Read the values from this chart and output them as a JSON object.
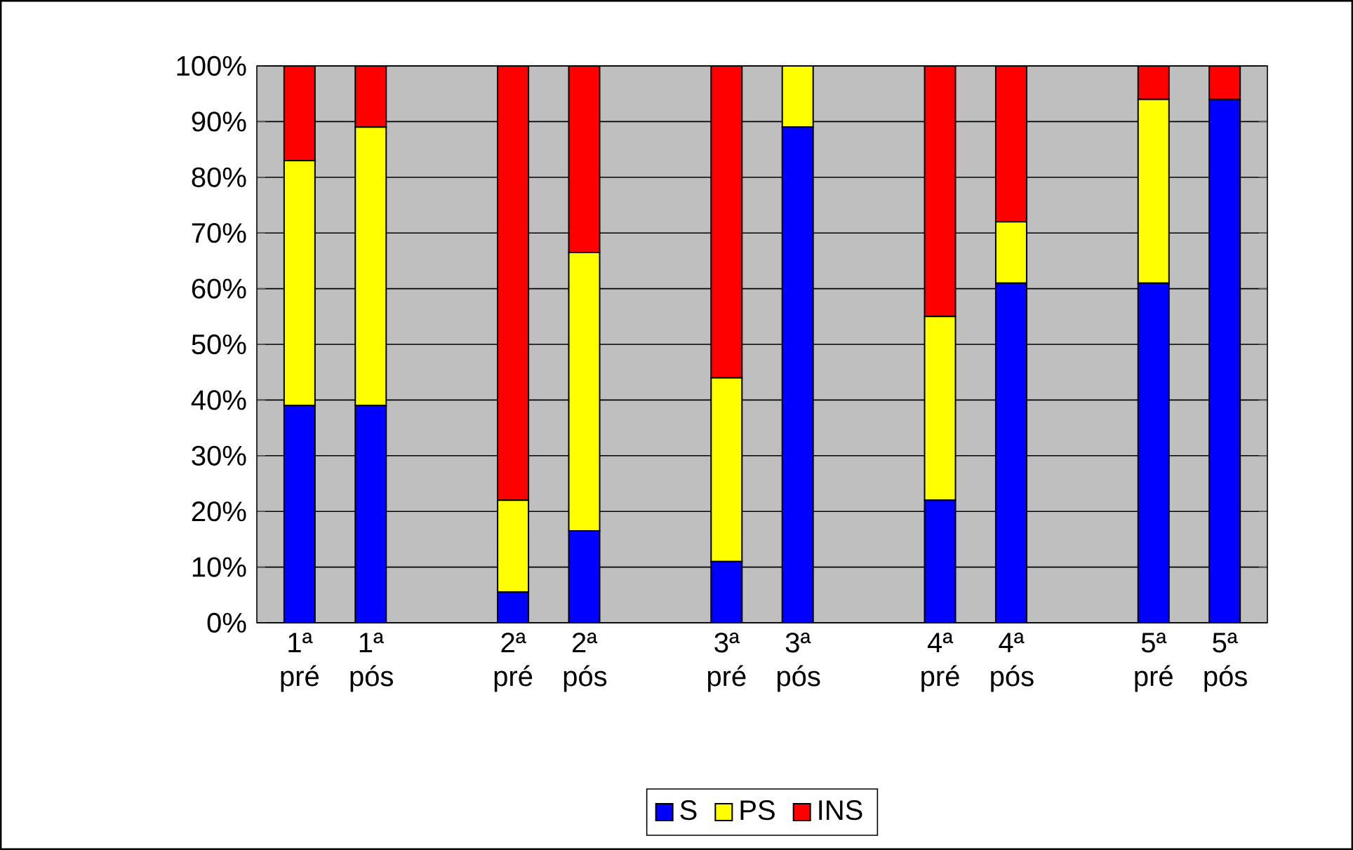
{
  "chart_data": {
    "type": "bar",
    "stacked": true,
    "categories": [
      "1ª pré",
      "1ª pós",
      null,
      "2ª pré",
      "2ª pós",
      null,
      "3ª pré",
      "3ª pós",
      null,
      "4ª pré",
      "4ª pós",
      null,
      "5ª pré",
      "5ª pós"
    ],
    "series": [
      {
        "name": "S",
        "color": "#0000ff",
        "values": [
          39,
          39,
          null,
          5.5,
          16.5,
          null,
          11,
          89,
          null,
          22,
          61,
          null,
          61,
          94
        ]
      },
      {
        "name": "PS",
        "color": "#ffff00",
        "values": [
          44,
          50,
          null,
          16.5,
          50,
          null,
          33,
          11,
          null,
          33,
          11,
          null,
          33,
          0
        ]
      },
      {
        "name": "INS",
        "color": "#ff0000",
        "values": [
          17,
          11,
          null,
          78,
          33.5,
          null,
          56,
          0,
          null,
          45,
          28,
          null,
          6,
          6
        ]
      }
    ],
    "ylim": [
      0,
      100
    ],
    "yticks": [
      {
        "value": 0,
        "label": "0%"
      },
      {
        "value": 10,
        "label": "10%"
      },
      {
        "value": 20,
        "label": "20%"
      },
      {
        "value": 30,
        "label": "30%"
      },
      {
        "value": 40,
        "label": "40%"
      },
      {
        "value": 50,
        "label": "50%"
      },
      {
        "value": 60,
        "label": "60%"
      },
      {
        "value": 70,
        "label": "70%"
      },
      {
        "value": 80,
        "label": "80%"
      },
      {
        "value": 90,
        "label": "90%"
      },
      {
        "value": 100,
        "label": "100%"
      }
    ],
    "grid": "y",
    "legend": "bottom"
  }
}
